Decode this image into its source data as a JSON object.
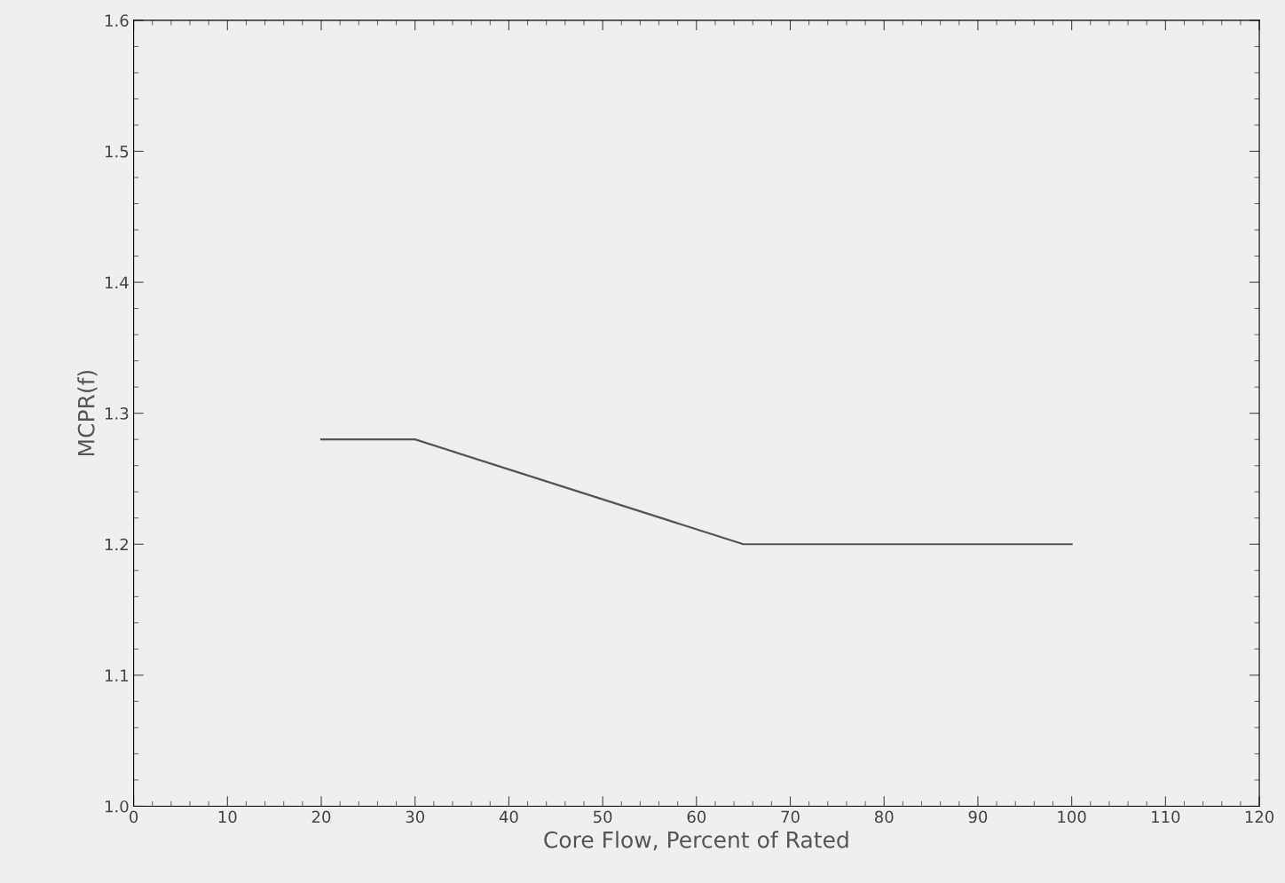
{
  "chart_data": {
    "type": "line",
    "xlabel": "Core Flow, Percent of Rated",
    "ylabel": "MCPR(f)",
    "x": [
      20,
      30,
      65,
      100
    ],
    "series": [
      {
        "color": "#555555",
        "values": [
          1.28,
          1.28,
          1.2,
          1.2
        ]
      }
    ],
    "xlim": [
      0,
      120
    ],
    "xticks": [
      0,
      10,
      20,
      30,
      40,
      50,
      60,
      70,
      80,
      90,
      100,
      110,
      120
    ],
    "ylim": [
      1.0,
      1.6
    ],
    "yticks": [
      {
        "value": 1.0,
        "label": "1.0"
      },
      {
        "value": 1.1,
        "label": "1.1"
      },
      {
        "value": 1.2,
        "label": "1.2"
      },
      {
        "value": 1.3,
        "label": "1.3"
      },
      {
        "value": 1.4,
        "label": "1.4"
      },
      {
        "value": 1.5,
        "label": "1.5"
      },
      {
        "value": 1.6,
        "label": "1.6"
      }
    ],
    "grid": false,
    "legend": false,
    "marker": "none",
    "line_style": "solid"
  }
}
